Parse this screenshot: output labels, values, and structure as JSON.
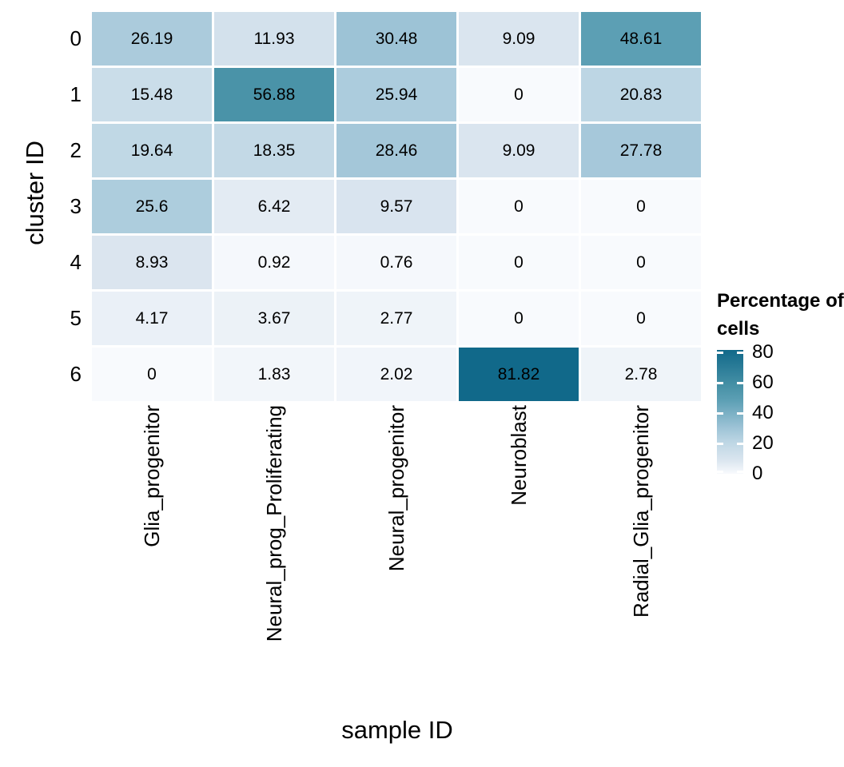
{
  "chart_data": {
    "type": "heatmap",
    "title": "",
    "xlabel": "sample ID",
    "ylabel": "cluster ID",
    "x_categories": [
      "Glia_progenitor",
      "Neural_prog_Proliferating",
      "Neural_progenitor",
      "Neuroblast",
      "Radial_Glia_progenitor"
    ],
    "y_categories": [
      "0",
      "1",
      "2",
      "3",
      "4",
      "5",
      "6"
    ],
    "values": [
      [
        26.19,
        11.93,
        30.48,
        9.09,
        48.61
      ],
      [
        15.48,
        56.88,
        25.94,
        0,
        20.83
      ],
      [
        19.64,
        18.35,
        28.46,
        9.09,
        27.78
      ],
      [
        25.6,
        6.42,
        9.57,
        0,
        0
      ],
      [
        8.93,
        0.92,
        0.76,
        0,
        0
      ],
      [
        4.17,
        3.67,
        2.77,
        0,
        0
      ],
      [
        0,
        1.83,
        2.02,
        81.82,
        2.78
      ]
    ],
    "value_range": [
      0,
      81.82
    ],
    "legend": {
      "title": "Percentage of cells",
      "ticks": [
        "80",
        "60",
        "40",
        "20",
        "0"
      ],
      "tick_values": [
        80,
        60,
        40,
        20,
        0
      ],
      "position": "right"
    },
    "color_scale": {
      "stops": [
        {
          "value": 0,
          "color": "#F8FAFD"
        },
        {
          "value": 9.09,
          "color": "#DAE5EF"
        },
        {
          "value": 20.83,
          "color": "#BDD6E4"
        },
        {
          "value": 30.48,
          "color": "#9DC3D6"
        },
        {
          "value": 48.61,
          "color": "#5C9FB4"
        },
        {
          "value": 56.88,
          "color": "#4A93A8"
        },
        {
          "value": 81.82,
          "color": "#11698A"
        }
      ],
      "gap_color": "#FFFFFF",
      "text_color": "#000000"
    },
    "grid": false
  }
}
